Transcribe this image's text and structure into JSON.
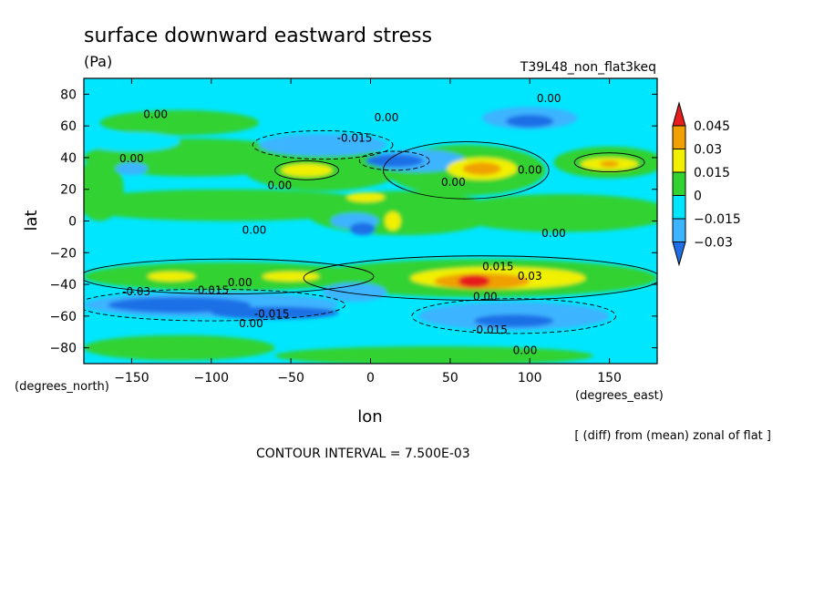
{
  "chart_data": {
    "type": "heatmap",
    "title": "surface downward eastward stress",
    "units": "(Pa)",
    "run_label": "T39L48_non_flat3keq",
    "xlabel": "lon",
    "ylabel": "lat",
    "x_units_label": "(degrees_east)",
    "y_units_label": "(degrees_north)",
    "xlim": [
      -180,
      180
    ],
    "ylim": [
      -90,
      90
    ],
    "x_ticks": [
      -150,
      -100,
      -50,
      0,
      50,
      100,
      150
    ],
    "x_tick_labels": [
      "−150",
      "−100",
      "−50",
      "0",
      "50",
      "100",
      "150"
    ],
    "y_ticks": [
      80,
      60,
      40,
      20,
      0,
      -20,
      -40,
      -60,
      -80
    ],
    "y_tick_labels": [
      "80",
      "60",
      "40",
      "20",
      "0",
      "−20",
      "−40",
      "−60",
      "−80"
    ],
    "colorbar": {
      "levels": [
        -0.03,
        -0.015,
        0,
        0.015,
        0.03,
        0.045
      ],
      "labels": [
        "−0.03",
        "−0.015",
        "0",
        "0.015",
        "0.03",
        "0.045"
      ],
      "colors": [
        "#1e6fe6",
        "#3cb4ff",
        "#00e6ff",
        "#32d232",
        "#f0f000",
        "#f0a000",
        "#e61e1e"
      ]
    },
    "contour_interval_label": "CONTOUR INTERVAL = 7.500E-03",
    "subtitle": "[ (diff) from (mean) zonal of flat ]",
    "contour_labels": [
      {
        "text": "0.00",
        "lon": 112,
        "lat": 75
      },
      {
        "text": "0.00",
        "lon": -135,
        "lat": 65
      },
      {
        "text": "0.00",
        "lon": 10,
        "lat": 63
      },
      {
        "text": "-0.015",
        "lon": -10,
        "lat": 50
      },
      {
        "text": "0.00",
        "lon": -150,
        "lat": 37
      },
      {
        "text": "0.00",
        "lon": 100,
        "lat": 30
      },
      {
        "text": "0.00",
        "lon": 52,
        "lat": 22
      },
      {
        "text": "0.00",
        "lon": -57,
        "lat": 20
      },
      {
        "text": "0.00",
        "lon": -73,
        "lat": -8
      },
      {
        "text": "0.00",
        "lon": 115,
        "lat": -10
      },
      {
        "text": "0.015",
        "lon": 80,
        "lat": -31
      },
      {
        "text": "0.03",
        "lon": 100,
        "lat": -37
      },
      {
        "text": "0.00",
        "lon": 72,
        "lat": -50
      },
      {
        "text": "-0.03",
        "lon": -147,
        "lat": -47
      },
      {
        "text": "-0.015",
        "lon": -100,
        "lat": -46
      },
      {
        "text": "0.00",
        "lon": -82,
        "lat": -41
      },
      {
        "text": "-0.015",
        "lon": -62,
        "lat": -61
      },
      {
        "text": "0.00",
        "lon": -75,
        "lat": -67
      },
      {
        "text": "-0.015",
        "lon": 75,
        "lat": -71
      },
      {
        "text": "0.00",
        "lon": 97,
        "lat": -84
      }
    ]
  }
}
